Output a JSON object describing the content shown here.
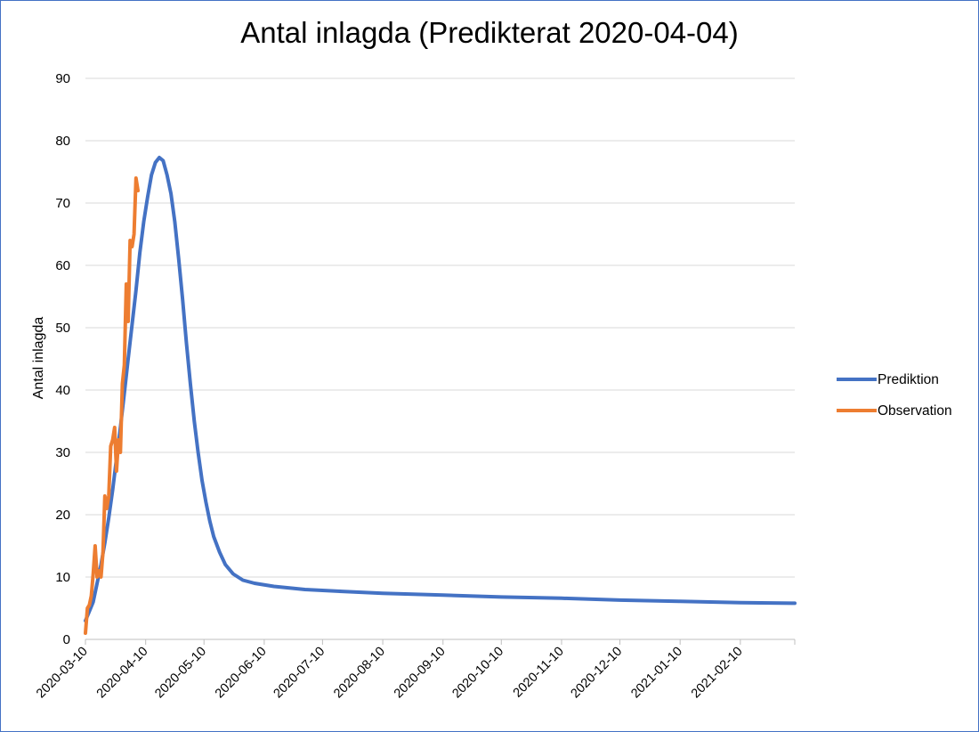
{
  "chart_data": {
    "type": "line",
    "title": "Antal inlagda (Predikterat 2020-04-04)",
    "xlabel": "",
    "ylabel": "Antal inlagda",
    "x_start": "2020-03-10",
    "x_end": "2021-03-10",
    "ylim": [
      0,
      90
    ],
    "yticks": [
      0,
      10,
      20,
      30,
      40,
      50,
      60,
      70,
      80,
      90
    ],
    "xtick_labels": [
      "2020-03-10",
      "2020-04-10",
      "2020-05-10",
      "2020-06-10",
      "2020-07-10",
      "2020-08-10",
      "2020-09-10",
      "2020-10-10",
      "2020-11-10",
      "2020-12-10",
      "2021-01-10",
      "2021-02-10"
    ],
    "grid": true,
    "legend_position": "right",
    "series": [
      {
        "name": "Prediktion",
        "color": "#4472c4",
        "points": [
          [
            "2020-03-10",
            3
          ],
          [
            "2020-03-12",
            4.5
          ],
          [
            "2020-03-14",
            6
          ],
          [
            "2020-03-16",
            9
          ],
          [
            "2020-03-18",
            12
          ],
          [
            "2020-03-20",
            15.5
          ],
          [
            "2020-03-22",
            19.5
          ],
          [
            "2020-03-24",
            24
          ],
          [
            "2020-03-26",
            29
          ],
          [
            "2020-03-28",
            34
          ],
          [
            "2020-03-30",
            39.5
          ],
          [
            "2020-04-01",
            45
          ],
          [
            "2020-04-03",
            50.5
          ],
          [
            "2020-04-05",
            56
          ],
          [
            "2020-04-07",
            62
          ],
          [
            "2020-04-09",
            67
          ],
          [
            "2020-04-11",
            71
          ],
          [
            "2020-04-13",
            74.5
          ],
          [
            "2020-04-15",
            76.5
          ],
          [
            "2020-04-17",
            77.3
          ],
          [
            "2020-04-19",
            76.8
          ],
          [
            "2020-04-21",
            74.5
          ],
          [
            "2020-04-23",
            71.5
          ],
          [
            "2020-04-25",
            67
          ],
          [
            "2020-04-27",
            61
          ],
          [
            "2020-04-29",
            54.5
          ],
          [
            "2020-05-01",
            47.5
          ],
          [
            "2020-05-03",
            41
          ],
          [
            "2020-05-05",
            35
          ],
          [
            "2020-05-07",
            30
          ],
          [
            "2020-05-09",
            25.5
          ],
          [
            "2020-05-11",
            22
          ],
          [
            "2020-05-13",
            19
          ],
          [
            "2020-05-15",
            16.5
          ],
          [
            "2020-05-18",
            14
          ],
          [
            "2020-05-21",
            12
          ],
          [
            "2020-05-25",
            10.5
          ],
          [
            "2020-05-30",
            9.5
          ],
          [
            "2020-06-05",
            9
          ],
          [
            "2020-06-15",
            8.5
          ],
          [
            "2020-07-01",
            8
          ],
          [
            "2020-07-20",
            7.7
          ],
          [
            "2020-08-10",
            7.4
          ],
          [
            "2020-09-10",
            7.1
          ],
          [
            "2020-10-10",
            6.8
          ],
          [
            "2020-11-10",
            6.6
          ],
          [
            "2020-12-10",
            6.3
          ],
          [
            "2021-01-10",
            6.1
          ],
          [
            "2021-02-10",
            5.9
          ],
          [
            "2021-03-10",
            5.8
          ]
        ]
      },
      {
        "name": "Observation",
        "color": "#ed7d31",
        "points": [
          [
            "2020-03-10",
            1
          ],
          [
            "2020-03-11",
            5
          ],
          [
            "2020-03-12",
            5.5
          ],
          [
            "2020-03-13",
            7
          ],
          [
            "2020-03-14",
            10.5
          ],
          [
            "2020-03-15",
            15
          ],
          [
            "2020-03-16",
            10
          ],
          [
            "2020-03-17",
            11
          ],
          [
            "2020-03-18",
            10
          ],
          [
            "2020-03-19",
            14
          ],
          [
            "2020-03-20",
            23
          ],
          [
            "2020-03-21",
            21
          ],
          [
            "2020-03-22",
            23
          ],
          [
            "2020-03-23",
            31
          ],
          [
            "2020-03-24",
            32
          ],
          [
            "2020-03-25",
            34
          ],
          [
            "2020-03-26",
            27
          ],
          [
            "2020-03-27",
            32
          ],
          [
            "2020-03-28",
            30
          ],
          [
            "2020-03-29",
            41
          ],
          [
            "2020-03-30",
            44
          ],
          [
            "2020-03-31",
            57
          ],
          [
            "2020-04-01",
            51
          ],
          [
            "2020-04-02",
            64
          ],
          [
            "2020-04-03",
            63
          ],
          [
            "2020-04-04",
            65
          ],
          [
            "2020-04-05",
            74
          ],
          [
            "2020-04-06",
            72
          ]
        ]
      }
    ]
  }
}
